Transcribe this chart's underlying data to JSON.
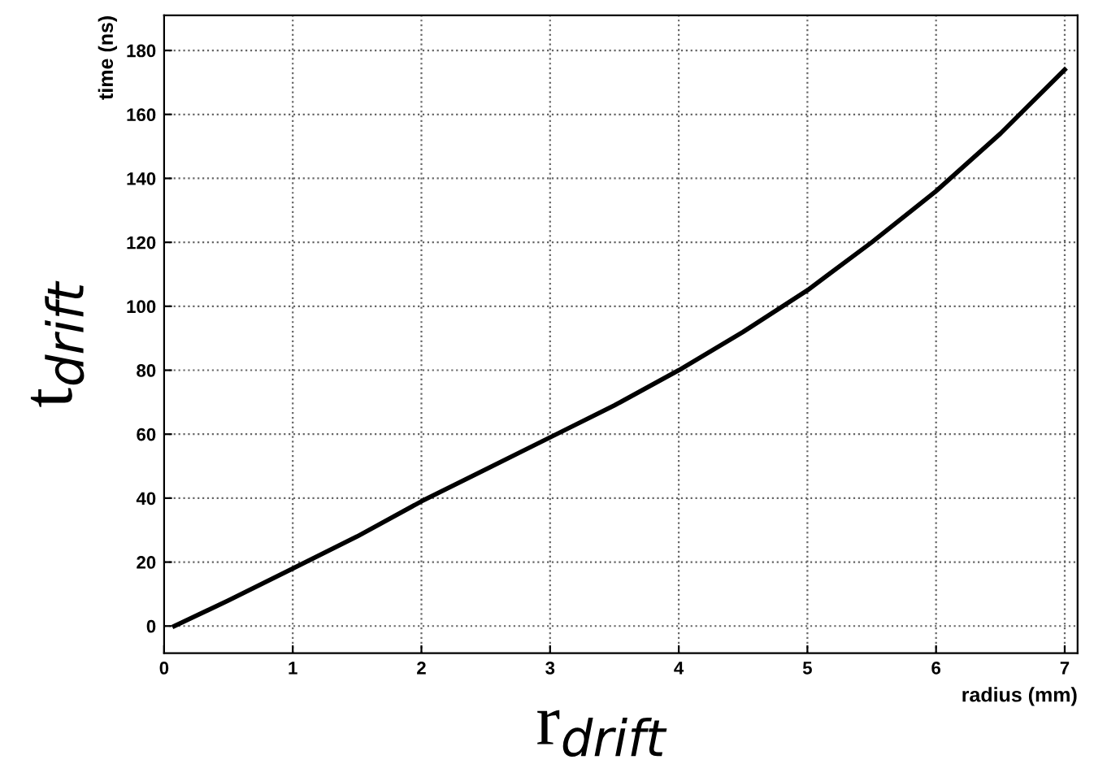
{
  "chart_data": {
    "type": "line",
    "xlabel": "radius (mm)",
    "ylabel": "time (ns)",
    "annotations": [
      "r$_{drift}$",
      "t$_{drift}$"
    ],
    "x": [
      0.08,
      0.5,
      1,
      1.5,
      2,
      2.5,
      3,
      3.5,
      4,
      4.5,
      5,
      5.5,
      6,
      6.5,
      7
    ],
    "series": [
      {
        "color": "#000000",
        "values": [
          0,
          8,
          18,
          28,
          39,
          49,
          59,
          69,
          80,
          92,
          105,
          120,
          136,
          154,
          174
        ]
      }
    ],
    "xlim": [
      0,
      7.1
    ],
    "xticks": [
      0,
      1,
      2,
      3,
      4,
      5,
      6,
      7
    ],
    "ylim": [
      -8.5,
      191
    ],
    "yticks": [
      0,
      20,
      40,
      60,
      80,
      100,
      120,
      140,
      160,
      180
    ],
    "grid": true,
    "marker": "none",
    "line_style": "solid"
  }
}
